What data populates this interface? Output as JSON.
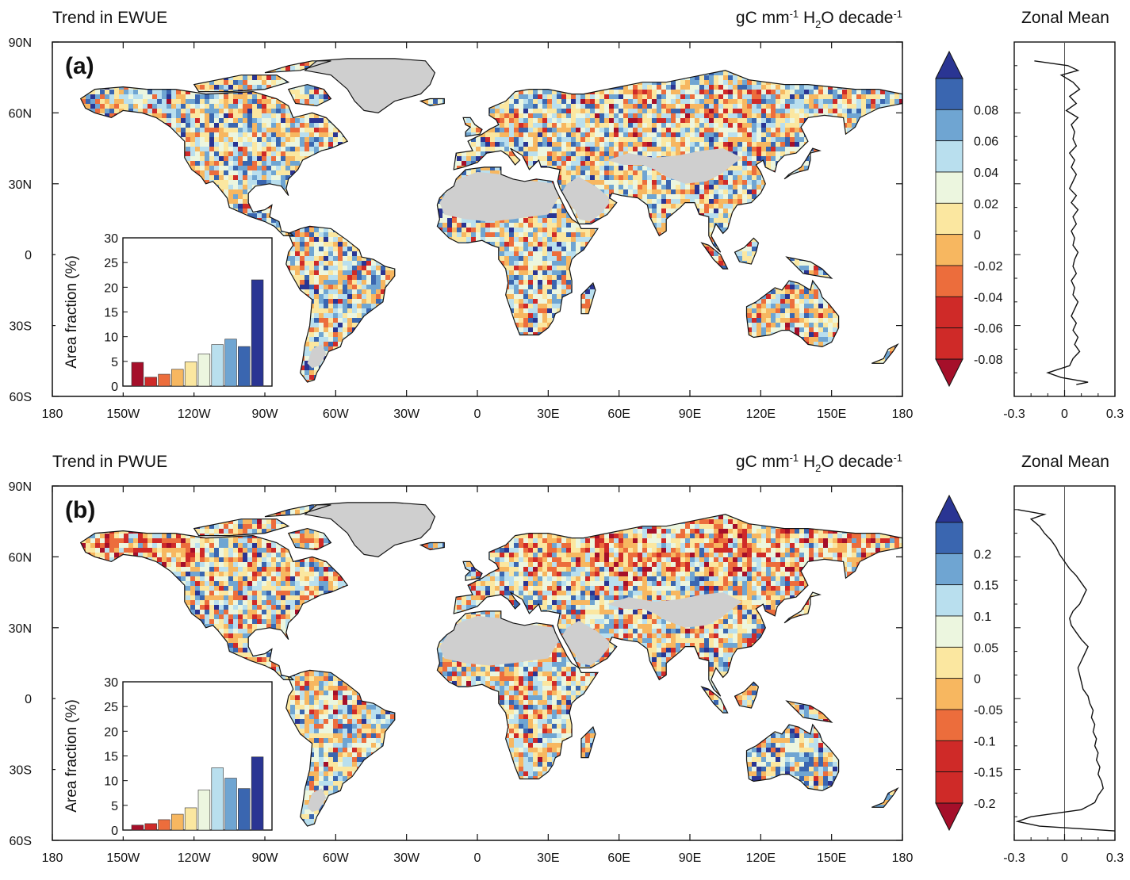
{
  "chart_data": [
    {
      "type": "heatmap",
      "panel_label": "(a)",
      "title": "Trend in EWUE",
      "units": {
        "pre": "gC mm",
        "sup1": "-1",
        "mid": " H",
        "sub": "2",
        "mid2": "O decade",
        "sup2": "-1"
      },
      "lon_ticks": [
        "180",
        "150W",
        "120W",
        "90W",
        "60W",
        "30W",
        "0",
        "30E",
        "60E",
        "90E",
        "120E",
        "150E",
        "180"
      ],
      "lat_ticks": [
        "90N",
        "60N",
        "30N",
        "0",
        "30S",
        "60S"
      ],
      "colorbar": {
        "labels": [
          "0.08",
          "0.06",
          "0.04",
          "0.02",
          "0",
          "-0.02",
          "-0.04",
          "-0.06",
          "-0.08"
        ],
        "colors": [
          "#2a3593",
          "#3a66b0",
          "#6fa5d2",
          "#b9dfee",
          "#ecf6df",
          "#fbe7a0",
          "#f7b760",
          "#ec6d3c",
          "#cf2a28",
          "#a50f2a"
        ]
      },
      "inset": {
        "type": "bar",
        "ylabel": "Area fraction (%)",
        "ylim": [
          0,
          30
        ],
        "yticks": [
          "0",
          "5",
          "10",
          "15",
          "20",
          "25",
          "30"
        ],
        "values": [
          4.8,
          1.8,
          2.4,
          3.4,
          4.9,
          6.5,
          8.4,
          9.5,
          8.0,
          21.5
        ],
        "colors": [
          "#a50f2a",
          "#cf2a28",
          "#ec6d3c",
          "#f7b760",
          "#fbe7a0",
          "#ecf6df",
          "#b9dfee",
          "#6fa5d2",
          "#3a66b0",
          "#2a3593"
        ]
      },
      "zonal_mean": {
        "title": "Zonal Mean",
        "xlim": [
          -0.3,
          0.3
        ],
        "xticks": [
          "-0.3",
          "0",
          "0.3"
        ],
        "lat": [
          82,
          80,
          78,
          76,
          73,
          70,
          67,
          64,
          61,
          58,
          55,
          52,
          49,
          46,
          43,
          40,
          37,
          34,
          31,
          28,
          25,
          22,
          19,
          16,
          13,
          10,
          7,
          4,
          1,
          -2,
          -5,
          -8,
          -11,
          -14,
          -17,
          -20,
          -23,
          -26,
          -29,
          -32,
          -35,
          -38,
          -41,
          -44,
          -47,
          -50,
          -52,
          -54,
          -55
        ],
        "value": [
          -0.18,
          0.02,
          0.08,
          -0.02,
          0.05,
          0.09,
          0.03,
          0.07,
          0.01,
          0.08,
          0.04,
          0.06,
          0.05,
          0.07,
          0.03,
          0.06,
          0.04,
          0.07,
          0.05,
          0.03,
          0.07,
          0.04,
          0.08,
          0.05,
          0.07,
          0.04,
          0.06,
          0.05,
          0.08,
          0.06,
          0.05,
          0.07,
          0.04,
          0.06,
          0.05,
          0.08,
          0.06,
          0.04,
          0.07,
          0.05,
          0.08,
          0.06,
          0.09,
          0.05,
          0.03,
          -0.1,
          -0.02,
          0.14,
          0.07
        ]
      }
    },
    {
      "type": "heatmap",
      "panel_label": "(b)",
      "title": "Trend in PWUE",
      "units": {
        "pre": "gC mm",
        "sup1": "-1",
        "mid": " H",
        "sub": "2",
        "mid2": "O decade",
        "sup2": "-1"
      },
      "lon_ticks": [
        "180",
        "150W",
        "120W",
        "90W",
        "60W",
        "30W",
        "0",
        "30E",
        "60E",
        "90E",
        "120E",
        "150E",
        "180"
      ],
      "lat_ticks": [
        "90N",
        "60N",
        "30N",
        "0",
        "30S",
        "60S"
      ],
      "colorbar": {
        "labels": [
          "0.2",
          "0.15",
          "0.1",
          "0.05",
          "0",
          "-0.05",
          "-0.1",
          "-0.15",
          "-0.2"
        ],
        "colors": [
          "#2a3593",
          "#3a66b0",
          "#6fa5d2",
          "#b9dfee",
          "#ecf6df",
          "#fbe7a0",
          "#f7b760",
          "#ec6d3c",
          "#cf2a28",
          "#a50f2a"
        ]
      },
      "inset": {
        "type": "bar",
        "ylabel": "Area fraction (%)",
        "ylim": [
          0,
          30
        ],
        "yticks": [
          "0",
          "5",
          "10",
          "15",
          "20",
          "25",
          "30"
        ],
        "values": [
          1.0,
          1.3,
          2.1,
          3.2,
          4.5,
          8.1,
          12.6,
          10.5,
          8.4,
          14.8
        ],
        "colors": [
          "#a50f2a",
          "#cf2a28",
          "#ec6d3c",
          "#f7b760",
          "#fbe7a0",
          "#ecf6df",
          "#b9dfee",
          "#6fa5d2",
          "#3a66b0",
          "#2a3593"
        ]
      },
      "zonal_mean": {
        "title": "Zonal Mean",
        "xlim": [
          -0.3,
          0.3
        ],
        "xticks": [
          "-0.3",
          "0",
          "0.3"
        ],
        "lat": [
          80,
          78,
          76,
          73,
          70,
          67,
          64,
          61,
          58,
          55,
          52,
          49,
          46,
          43,
          40,
          37,
          34,
          31,
          28,
          25,
          22,
          19,
          16,
          13,
          10,
          7,
          4,
          1,
          -2,
          -5,
          -8,
          -11,
          -14,
          -17,
          -20,
          -23,
          -26,
          -29,
          -32,
          -35,
          -38,
          -41,
          -44,
          -47,
          -50,
          -52,
          -54,
          -56
        ],
        "value": [
          -0.28,
          -0.12,
          -0.2,
          -0.15,
          -0.12,
          -0.08,
          -0.05,
          -0.03,
          0.0,
          0.03,
          0.07,
          0.1,
          0.13,
          0.11,
          0.09,
          0.05,
          0.03,
          0.04,
          0.07,
          0.1,
          0.14,
          0.12,
          0.1,
          0.08,
          0.09,
          0.1,
          0.11,
          0.14,
          0.15,
          0.17,
          0.16,
          0.18,
          0.17,
          0.19,
          0.18,
          0.2,
          0.19,
          0.21,
          0.2,
          0.22,
          0.23,
          0.2,
          0.18,
          0.1,
          -0.2,
          -0.28,
          -0.15,
          0.3
        ]
      }
    }
  ]
}
